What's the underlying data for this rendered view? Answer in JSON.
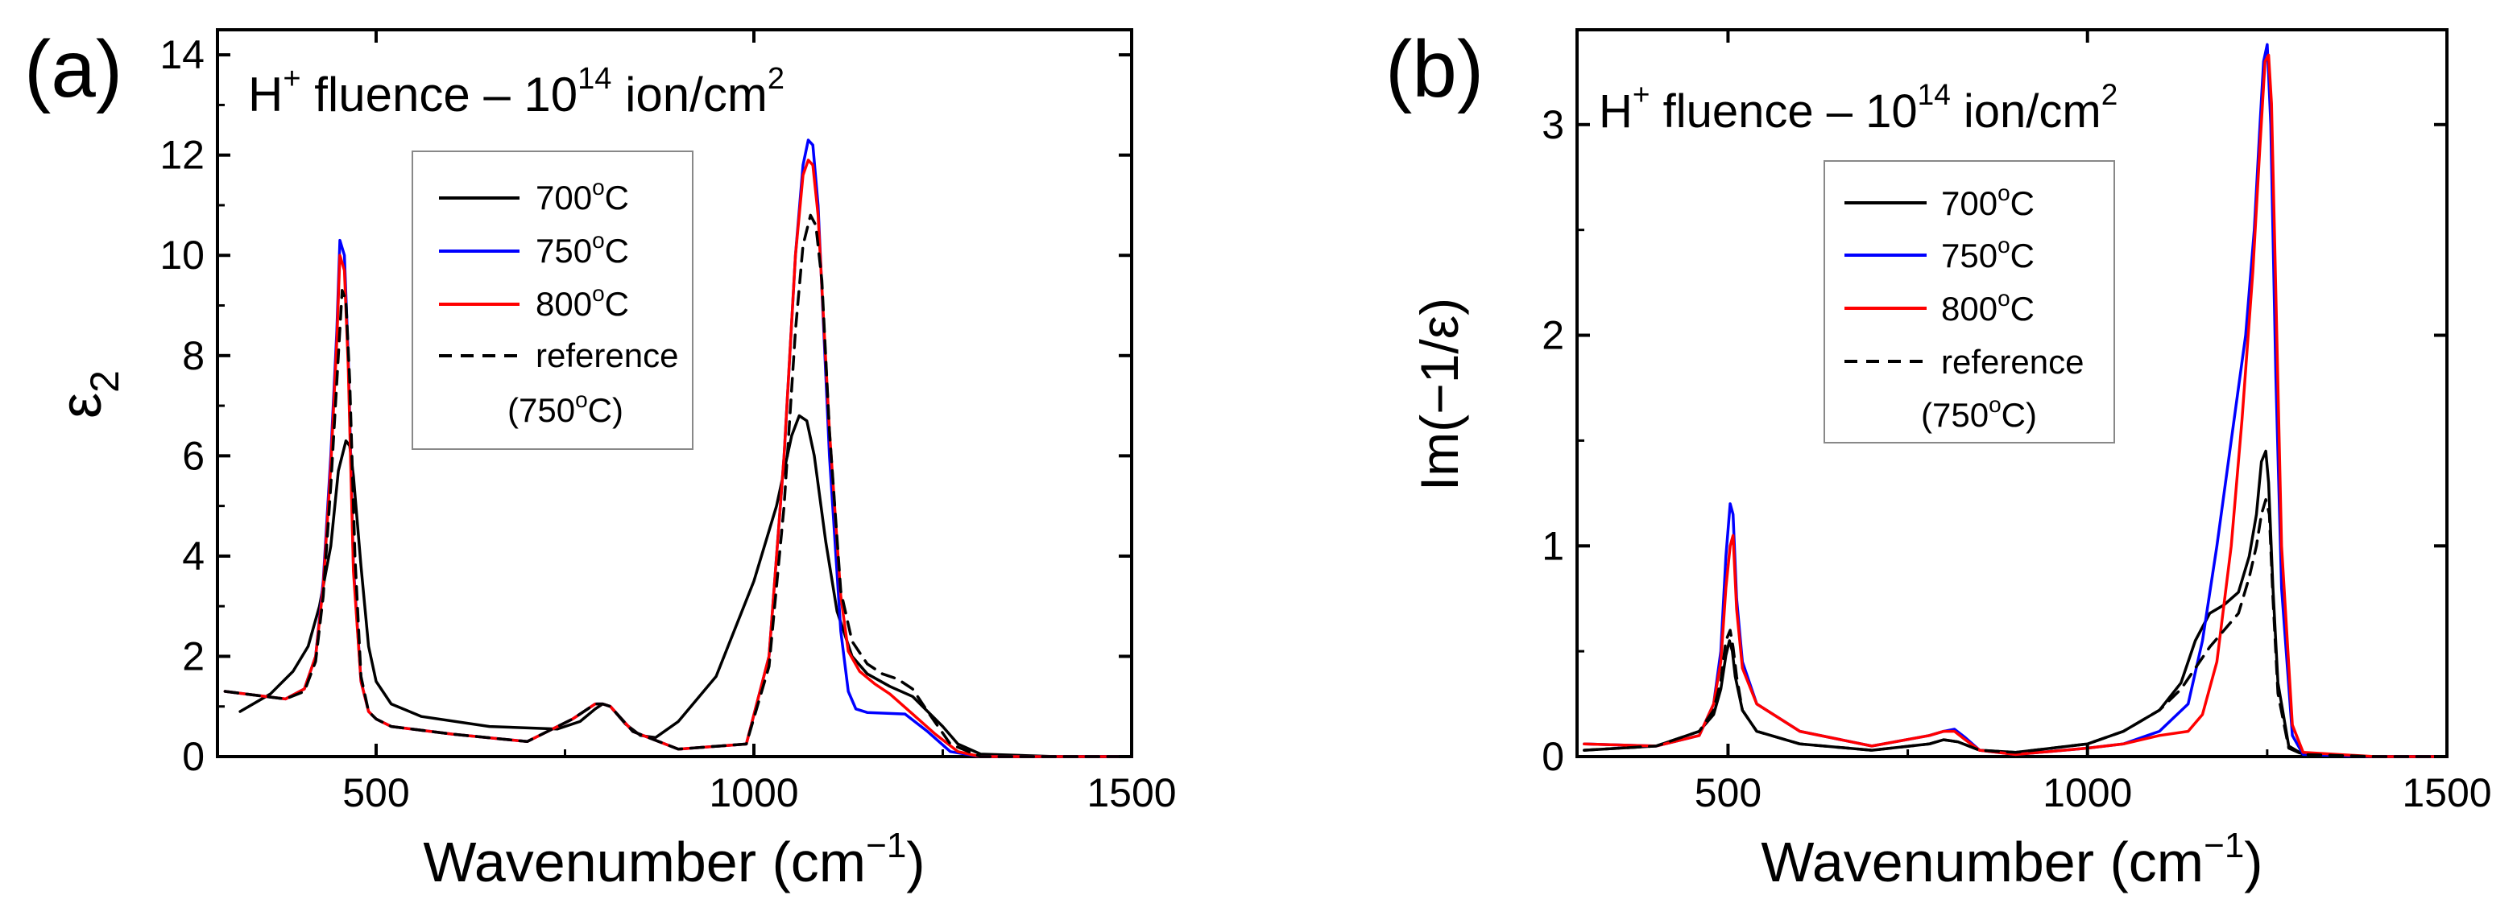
{
  "colors": {
    "700C": "#000000",
    "750C": "#0000ff",
    "800C": "#ff0000",
    "reference": "#000000"
  },
  "chart_data": [
    {
      "type": "line",
      "panel_label": "(a)",
      "title_prefix": "H",
      "title_sup1": "+",
      "title_mid": " fluence – 10",
      "title_sup2": "14",
      "title_unit": " ion/cm",
      "title_sup3": "2",
      "xlabel_main": "Wavenumber (cm",
      "xlabel_sup": "−1",
      "xlabel_end": ")",
      "ylabel_main": "ε",
      "ylabel_sub": "2",
      "xlim": [
        290,
        1500
      ],
      "ylim": [
        0,
        14.5
      ],
      "xticks": [
        500,
        1000,
        1500
      ],
      "yticks": [
        0,
        2,
        4,
        6,
        8,
        10,
        12,
        14
      ],
      "legend_position": "top-center",
      "legend_entries": [
        {
          "key": "700C",
          "text": "700",
          "sup": "o",
          "unit": "C",
          "dashed": false
        },
        {
          "key": "750C",
          "text": "750",
          "sup": "o",
          "unit": "C",
          "dashed": false
        },
        {
          "key": "800C",
          "text": "800",
          "sup": "o",
          "unit": "C",
          "dashed": false
        },
        {
          "key": "reference",
          "text": "reference",
          "sup": "",
          "unit": "",
          "dashed": true
        }
      ],
      "legend_extra": {
        "text": "(750",
        "sup": "o",
        "unit": "C)"
      },
      "series": [
        {
          "name": "700°C",
          "key": "700C",
          "x": [
            320,
            360,
            390,
            410,
            425,
            440,
            450,
            460,
            465,
            470,
            480,
            490,
            500,
            520,
            560,
            650,
            740,
            770,
            790,
            800,
            810,
            830,
            850,
            870,
            900,
            950,
            1000,
            1030,
            1050,
            1060,
            1070,
            1080,
            1095,
            1110,
            1130,
            1150,
            1180,
            1210,
            1250,
            1270,
            1300,
            1400,
            1500
          ],
          "y": [
            0.9,
            1.25,
            1.7,
            2.2,
            3.0,
            4.2,
            5.7,
            6.3,
            6.2,
            5.6,
            3.8,
            2.2,
            1.5,
            1.05,
            0.8,
            0.6,
            0.55,
            0.7,
            0.95,
            1.05,
            1.0,
            0.65,
            0.42,
            0.38,
            0.7,
            1.6,
            3.5,
            5.0,
            6.4,
            6.8,
            6.7,
            6.0,
            4.3,
            2.9,
            2.0,
            1.65,
            1.4,
            1.2,
            0.6,
            0.25,
            0.05,
            0.0,
            0.0
          ]
        },
        {
          "name": "750°C",
          "key": "750C",
          "x": [
            300,
            380,
            405,
            420,
            430,
            440,
            448,
            452,
            458,
            463,
            470,
            480,
            490,
            500,
            520,
            600,
            700,
            760,
            790,
            800,
            810,
            840,
            900,
            990,
            1020,
            1040,
            1055,
            1065,
            1072,
            1078,
            1085,
            1100,
            1115,
            1125,
            1135,
            1150,
            1200,
            1230,
            1260,
            1300,
            1400,
            1500
          ],
          "y": [
            1.3,
            1.15,
            1.35,
            2.0,
            3.5,
            6.0,
            8.5,
            10.3,
            10.0,
            8.0,
            3.8,
            1.5,
            0.9,
            0.75,
            0.6,
            0.45,
            0.3,
            0.75,
            1.05,
            1.05,
            1.0,
            0.5,
            0.15,
            0.25,
            2.0,
            6.0,
            10.0,
            11.8,
            12.3,
            12.2,
            11.0,
            6.0,
            2.5,
            1.3,
            0.95,
            0.88,
            0.85,
            0.5,
            0.1,
            0.0,
            0.0,
            0.0
          ]
        },
        {
          "name": "800°C",
          "key": "800C",
          "x": [
            300,
            380,
            405,
            420,
            430,
            440,
            448,
            452,
            458,
            463,
            470,
            480,
            490,
            500,
            520,
            600,
            700,
            760,
            790,
            800,
            810,
            840,
            900,
            990,
            1020,
            1040,
            1055,
            1065,
            1072,
            1078,
            1085,
            1100,
            1115,
            1125,
            1140,
            1160,
            1180,
            1210,
            1240,
            1270,
            1300,
            1400,
            1500
          ],
          "y": [
            1.3,
            1.15,
            1.35,
            2.0,
            3.4,
            5.8,
            8.3,
            10.0,
            9.7,
            7.8,
            3.7,
            1.5,
            0.9,
            0.75,
            0.6,
            0.45,
            0.3,
            0.75,
            1.05,
            1.05,
            1.0,
            0.5,
            0.15,
            0.25,
            2.0,
            6.0,
            10.0,
            11.6,
            11.9,
            11.8,
            10.8,
            6.5,
            3.2,
            2.1,
            1.7,
            1.45,
            1.25,
            0.85,
            0.45,
            0.1,
            0.0,
            0.0,
            0.0
          ]
        },
        {
          "name": "reference (750°C)",
          "key": "reference",
          "x": [
            300,
            380,
            405,
            420,
            430,
            440,
            450,
            455,
            460,
            465,
            472,
            480,
            490,
            500,
            520,
            600,
            700,
            760,
            790,
            800,
            810,
            840,
            900,
            990,
            1020,
            1040,
            1055,
            1065,
            1075,
            1082,
            1090,
            1100,
            1115,
            1130,
            1150,
            1170,
            1190,
            1210,
            1230,
            1260,
            1300,
            1400,
            1500
          ],
          "y": [
            1.3,
            1.15,
            1.3,
            1.9,
            3.2,
            5.4,
            8.0,
            9.3,
            9.1,
            7.5,
            4.0,
            1.6,
            0.9,
            0.75,
            0.6,
            0.45,
            0.3,
            0.75,
            1.05,
            1.05,
            1.0,
            0.5,
            0.15,
            0.25,
            1.8,
            5.0,
            8.5,
            10.2,
            10.8,
            10.6,
            9.5,
            6.5,
            3.3,
            2.3,
            1.85,
            1.65,
            1.55,
            1.35,
            0.9,
            0.25,
            0.0,
            0.0,
            0.0
          ]
        }
      ]
    },
    {
      "type": "line",
      "panel_label": "(b)",
      "title_prefix": "H",
      "title_sup1": "+",
      "title_mid": " fluence – 10",
      "title_sup2": "14",
      "title_unit": " ion/cm",
      "title_sup3": "2",
      "xlabel_main": "Wavenumber (cm",
      "xlabel_sup": "−1",
      "xlabel_end": ")",
      "ylabel_main": "Im(−1/ε)",
      "ylabel_sub": "",
      "xlim": [
        290,
        1500
      ],
      "ylim": [
        0,
        3.45
      ],
      "xticks": [
        500,
        1000,
        1500
      ],
      "yticks": [
        0,
        1,
        2,
        3
      ],
      "legend_position": "top-center",
      "legend_entries": [
        {
          "key": "700C",
          "text": "700",
          "sup": "o",
          "unit": "C",
          "dashed": false
        },
        {
          "key": "750C",
          "text": "750",
          "sup": "o",
          "unit": "C",
          "dashed": false
        },
        {
          "key": "800C",
          "text": "800",
          "sup": "o",
          "unit": "C",
          "dashed": false
        },
        {
          "key": "reference",
          "text": "reference",
          "sup": "",
          "unit": "",
          "dashed": true
        }
      ],
      "legend_extra": {
        "text": "(750",
        "sup": "o",
        "unit": "C)"
      },
      "series": [
        {
          "name": "700°C",
          "key": "700C",
          "x": [
            300,
            400,
            460,
            480,
            490,
            497,
            502,
            506,
            510,
            520,
            540,
            600,
            700,
            780,
            800,
            820,
            850,
            900,
            1000,
            1050,
            1100,
            1130,
            1150,
            1170,
            1190,
            1210,
            1225,
            1235,
            1242,
            1248,
            1252,
            1258,
            1265,
            1280,
            1300,
            1400,
            1500
          ],
          "y": [
            0.03,
            0.05,
            0.12,
            0.2,
            0.32,
            0.48,
            0.55,
            0.5,
            0.38,
            0.22,
            0.12,
            0.06,
            0.03,
            0.06,
            0.08,
            0.07,
            0.03,
            0.02,
            0.06,
            0.12,
            0.22,
            0.35,
            0.55,
            0.68,
            0.72,
            0.78,
            0.95,
            1.15,
            1.4,
            1.45,
            1.3,
            0.8,
            0.35,
            0.05,
            0.01,
            0.0,
            0.0
          ]
        },
        {
          "name": "750°C",
          "key": "750C",
          "x": [
            300,
            400,
            460,
            480,
            490,
            497,
            503,
            507,
            512,
            520,
            540,
            600,
            700,
            780,
            800,
            815,
            830,
            850,
            900,
            1000,
            1050,
            1100,
            1140,
            1160,
            1180,
            1200,
            1220,
            1232,
            1240,
            1245,
            1250,
            1255,
            1262,
            1270,
            1285,
            1300,
            1400,
            1500
          ],
          "y": [
            0.06,
            0.05,
            0.1,
            0.25,
            0.5,
            0.95,
            1.2,
            1.15,
            0.75,
            0.45,
            0.25,
            0.12,
            0.05,
            0.1,
            0.12,
            0.13,
            0.09,
            0.03,
            0.01,
            0.04,
            0.06,
            0.12,
            0.25,
            0.55,
            1.0,
            1.5,
            2.0,
            2.5,
            3.0,
            3.3,
            3.38,
            3.0,
            1.8,
            0.8,
            0.1,
            0.01,
            0.0,
            0.0
          ]
        },
        {
          "name": "800°C",
          "key": "800C",
          "x": [
            300,
            400,
            460,
            480,
            490,
            497,
            503,
            507,
            512,
            520,
            540,
            600,
            700,
            780,
            800,
            815,
            830,
            850,
            900,
            1000,
            1050,
            1100,
            1140,
            1160,
            1180,
            1200,
            1215,
            1230,
            1240,
            1247,
            1252,
            1256,
            1262,
            1270,
            1285,
            1300,
            1400,
            1500
          ],
          "y": [
            0.06,
            0.05,
            0.1,
            0.25,
            0.45,
            0.8,
            1.0,
            1.05,
            0.7,
            0.42,
            0.25,
            0.12,
            0.05,
            0.1,
            0.12,
            0.12,
            0.08,
            0.03,
            0.01,
            0.04,
            0.06,
            0.1,
            0.12,
            0.2,
            0.45,
            1.0,
            1.6,
            2.3,
            2.9,
            3.3,
            3.33,
            3.1,
            2.2,
            1.0,
            0.15,
            0.02,
            0.0,
            0.0
          ]
        },
        {
          "name": "reference (750°C)",
          "key": "reference",
          "x": [
            300,
            400,
            460,
            480,
            490,
            497,
            503,
            507,
            512,
            520,
            540,
            600,
            700,
            780,
            800,
            820,
            850,
            900,
            1000,
            1050,
            1100,
            1130,
            1150,
            1170,
            1190,
            1210,
            1225,
            1235,
            1242,
            1248,
            1253,
            1258,
            1265,
            1280,
            1300,
            1400,
            1500
          ],
          "y": [
            0.03,
            0.05,
            0.12,
            0.22,
            0.36,
            0.55,
            0.6,
            0.52,
            0.38,
            0.22,
            0.12,
            0.06,
            0.03,
            0.06,
            0.08,
            0.07,
            0.03,
            0.02,
            0.06,
            0.12,
            0.22,
            0.32,
            0.42,
            0.52,
            0.6,
            0.68,
            0.85,
            1.0,
            1.15,
            1.22,
            1.15,
            0.75,
            0.3,
            0.04,
            0.01,
            0.0,
            0.0
          ]
        }
      ]
    }
  ]
}
